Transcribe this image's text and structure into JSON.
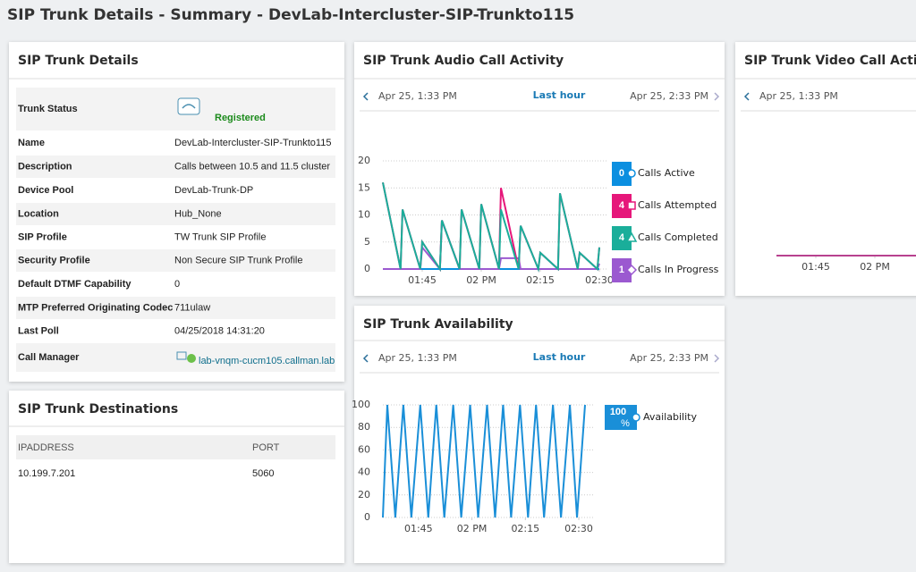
{
  "title": "SIP Trunk Details - Summary - DevLab-Intercluster-SIP-Trunkto115",
  "details": {
    "title": "SIP Trunk Details",
    "rows": [
      [
        "Trunk Status",
        "Registered"
      ],
      [
        "Name",
        "DevLab-Intercluster-SIP-Trunkto115"
      ],
      [
        "Description",
        "Calls between 10.5 and 11.5 cluster"
      ],
      [
        "Device Pool",
        "DevLab-Trunk-DP"
      ],
      [
        "Location",
        "Hub_None"
      ],
      [
        "SIP Profile",
        "TW Trunk SIP Profile"
      ],
      [
        "Security Profile",
        "Non Secure SIP Trunk Profile"
      ],
      [
        "Default DTMF Capability",
        "0"
      ],
      [
        "MTP Preferred Originating Codec",
        "711ulaw"
      ],
      [
        "Last Poll",
        "04/25/2018 14:31:20"
      ],
      [
        "Call Manager",
        "lab-vnqm-cucm105.callman.lab"
      ]
    ]
  },
  "destinations": {
    "title": "SIP Trunk Destinations",
    "columns": [
      "IPADDRESS",
      "PORT"
    ],
    "rows": [
      [
        "10.199.7.201",
        "5060"
      ]
    ]
  },
  "audio": {
    "title": "SIP Trunk Audio Call Activity",
    "range_start": "Apr 25, 1:33 PM",
    "range_label": "Last hour",
    "range_end": "Apr 25, 2:33 PM",
    "chart": {
      "type": "line",
      "xlim": [
        35,
        90
      ],
      "xticks": [
        {
          "value": 45,
          "label": "01:45"
        },
        {
          "value": 60,
          "label": "02 PM"
        },
        {
          "value": 75,
          "label": "02:15"
        },
        {
          "value": 90,
          "label": "02:30"
        }
      ],
      "ylim": [
        0,
        20
      ],
      "yticks": [
        0,
        5,
        10,
        15,
        20
      ],
      "grid": true,
      "x": [
        35,
        39.5,
        40,
        44.5,
        45,
        49.5,
        50,
        54.5,
        55,
        59.5,
        60,
        64.5,
        65,
        69.5,
        70,
        74.5,
        75,
        79.5,
        80,
        84.5,
        85,
        89.5,
        90
      ],
      "series": [
        {
          "name": "Calls Active",
          "color": "#0b8fe0",
          "current": 0,
          "values": [
            0,
            0,
            0,
            0,
            0,
            0,
            0,
            0,
            0,
            0,
            0,
            0,
            0,
            0,
            0,
            0,
            0,
            0,
            0,
            0,
            0,
            0,
            0
          ]
        },
        {
          "name": "Calls Attempted",
          "color": "#e6177a",
          "current": 4,
          "values": [
            16,
            0,
            11,
            0,
            5,
            0,
            9,
            0,
            11,
            0,
            12,
            0,
            15,
            0,
            8,
            0,
            3,
            0,
            14,
            0,
            3,
            0,
            4
          ]
        },
        {
          "name": "Calls Completed",
          "color": "#1aae9a",
          "current": 4,
          "values": [
            16,
            0,
            11,
            0,
            5,
            0,
            9,
            0,
            11,
            0,
            12,
            0,
            11,
            0,
            8,
            0,
            3,
            0,
            14,
            0,
            3,
            0,
            4
          ]
        },
        {
          "name": "Calls In Progress",
          "color": "#9b59d0",
          "current": 1,
          "values": [
            0,
            0,
            0,
            0,
            4,
            0,
            9,
            0,
            0,
            0,
            0,
            0,
            2,
            2,
            0,
            0,
            0,
            0,
            0,
            0,
            0,
            0,
            1
          ]
        }
      ]
    }
  },
  "availability": {
    "title": "SIP Trunk Availability",
    "range_start": "Apr 25, 1:33 PM",
    "range_label": "Last hour",
    "range_end": "Apr 25, 2:33 PM",
    "chart": {
      "type": "line",
      "xlim": [
        35,
        92
      ],
      "xticks": [
        {
          "value": 45,
          "label": "01:45"
        },
        {
          "value": 60,
          "label": "02 PM"
        },
        {
          "value": 75,
          "label": "02:15"
        },
        {
          "value": 90,
          "label": "02:30"
        }
      ],
      "ylim": [
        0,
        100
      ],
      "yticks": [
        0,
        20,
        40,
        60,
        80,
        100
      ],
      "grid": true,
      "x": [
        35,
        36.25,
        38.5,
        40.75,
        43,
        45.5,
        47.75,
        50,
        52.25,
        54.75,
        57,
        59.5,
        61.75,
        64.25,
        66.5,
        68.75,
        71,
        73.5,
        75.75,
        78,
        80.25,
        82.75,
        85,
        87.5,
        89.5,
        91.75
      ],
      "series": [
        {
          "name": "Availability",
          "color": "#1a8fd8",
          "current": 100,
          "current_unit": "%",
          "values": [
            0,
            100,
            0,
            100,
            0,
            100,
            0,
            100,
            0,
            100,
            0,
            100,
            0,
            100,
            0,
            100,
            0,
            100,
            0,
            100,
            0,
            100,
            0,
            100,
            0,
            100
          ]
        }
      ]
    }
  },
  "video": {
    "title": "SIP Trunk Video Call Activity",
    "range_start": "Apr 25, 1:33 PM",
    "chart": {
      "type": "line",
      "xlim": [
        35,
        90
      ],
      "xticks": [
        {
          "value": 45,
          "label": "01:45"
        },
        {
          "value": 60,
          "label": "02 PM"
        }
      ],
      "ylim": [
        0,
        20
      ],
      "x": [
        35,
        90
      ],
      "series": [
        {
          "color": "#b8418f",
          "values": [
            0,
            0
          ]
        }
      ]
    }
  }
}
